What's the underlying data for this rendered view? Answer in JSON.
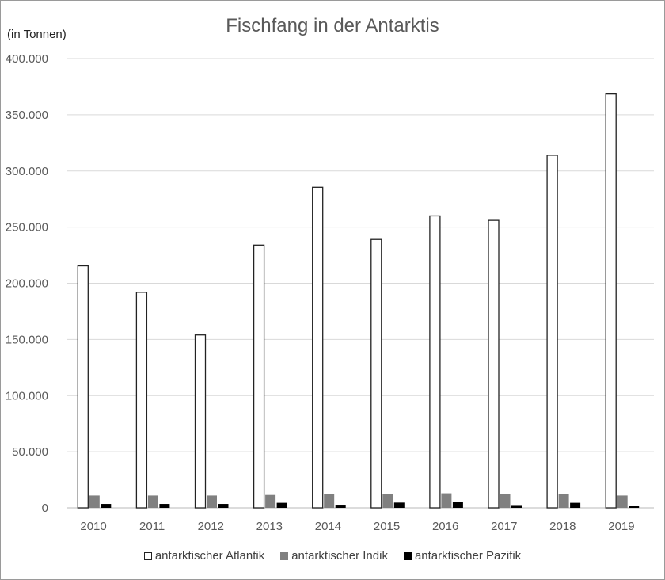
{
  "chart_data": {
    "type": "bar",
    "title": "Fischfang in der Antarktis",
    "ylabel": "(in Tonnen)",
    "xlabel": "",
    "categories": [
      "2010",
      "2011",
      "2012",
      "2013",
      "2014",
      "2015",
      "2016",
      "2017",
      "2018",
      "2019"
    ],
    "ylim": [
      0,
      400000
    ],
    "yticks": [
      0,
      50000,
      100000,
      150000,
      200000,
      250000,
      300000,
      350000,
      400000
    ],
    "ytick_labels": [
      "0",
      "50.000",
      "100.000",
      "150.000",
      "200.000",
      "250.000",
      "300.000",
      "350.000",
      "400.000"
    ],
    "grid": true,
    "legend_position": "bottom",
    "series": [
      {
        "name": "antarktischer Atlantik",
        "color": "#ffffff",
        "values": [
          215500,
          192000,
          154000,
          234000,
          285500,
          239000,
          260000,
          256000,
          314000,
          368500
        ]
      },
      {
        "name": "antarktischer Indik",
        "color": "#808080",
        "values": [
          11000,
          11000,
          11000,
          11500,
          12000,
          12000,
          13000,
          12500,
          12000,
          11000
        ]
      },
      {
        "name": "antarktischer Pazifik",
        "color": "#000000",
        "values": [
          3500,
          3500,
          3500,
          4500,
          2800,
          4700,
          5500,
          2500,
          4500,
          1500
        ]
      }
    ]
  }
}
